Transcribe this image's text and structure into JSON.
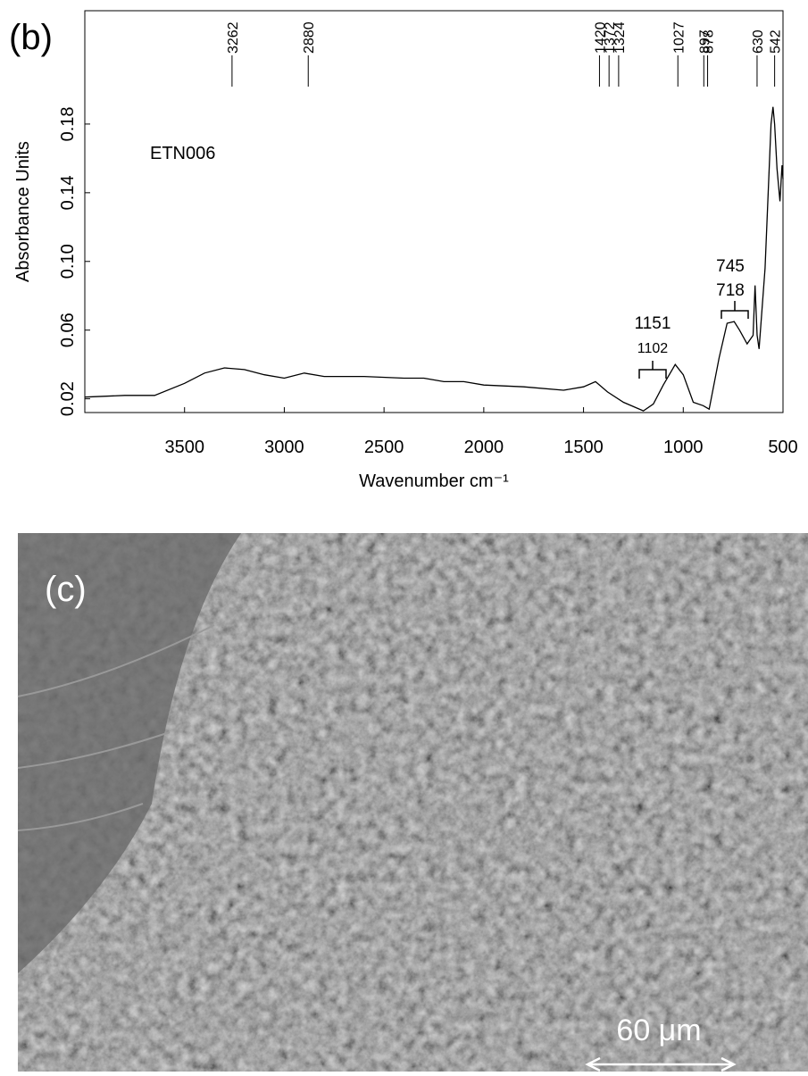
{
  "chart_data": {
    "type": "line",
    "panel_label": "(b)",
    "xlabel": "Wavenumber cm⁻¹",
    "ylabel": "Absorbance Units",
    "x": [
      4000,
      3800,
      3650,
      3500,
      3400,
      3300,
      3200,
      3100,
      3000,
      2900,
      2800,
      2600,
      2400,
      2300,
      2200,
      2100,
      2000,
      1800,
      1600,
      1500,
      1440,
      1380,
      1300,
      1200,
      1150,
      1100,
      1040,
      1000,
      950,
      900,
      870,
      820,
      780,
      745,
      718,
      680,
      650,
      640,
      630,
      620,
      590,
      560,
      550,
      542,
      530,
      515,
      505,
      500
    ],
    "values": [
      0.021,
      0.022,
      0.022,
      0.029,
      0.035,
      0.038,
      0.037,
      0.034,
      0.032,
      0.035,
      0.033,
      0.033,
      0.032,
      0.032,
      0.03,
      0.03,
      0.028,
      0.027,
      0.025,
      0.027,
      0.03,
      0.024,
      0.018,
      0.013,
      0.017,
      0.028,
      0.04,
      0.034,
      0.018,
      0.016,
      0.014,
      0.044,
      0.064,
      0.065,
      0.06,
      0.052,
      0.057,
      0.086,
      0.057,
      0.049,
      0.096,
      0.18,
      0.19,
      0.18,
      0.154,
      0.135,
      0.156,
      0.148
    ],
    "color": "#000000",
    "xlim": [
      4000,
      500
    ],
    "xticks": [
      3500,
      3000,
      2500,
      2000,
      1500,
      1000,
      500
    ],
    "ylim": [
      0.012,
      0.246
    ],
    "yticks": [
      0.02,
      0.06,
      {
        "value": 0.1,
        "label": "0.10"
      },
      0.14,
      0.18
    ],
    "peaks": [
      3262,
      2880,
      1420,
      1372,
      1324,
      1027,
      897,
      878,
      630,
      542
    ],
    "annotations": [
      "ETN006",
      "1151",
      "1102",
      "745",
      "718"
    ]
  },
  "image_panel": {
    "label": "(c)",
    "scale_bar": "60 μm"
  }
}
